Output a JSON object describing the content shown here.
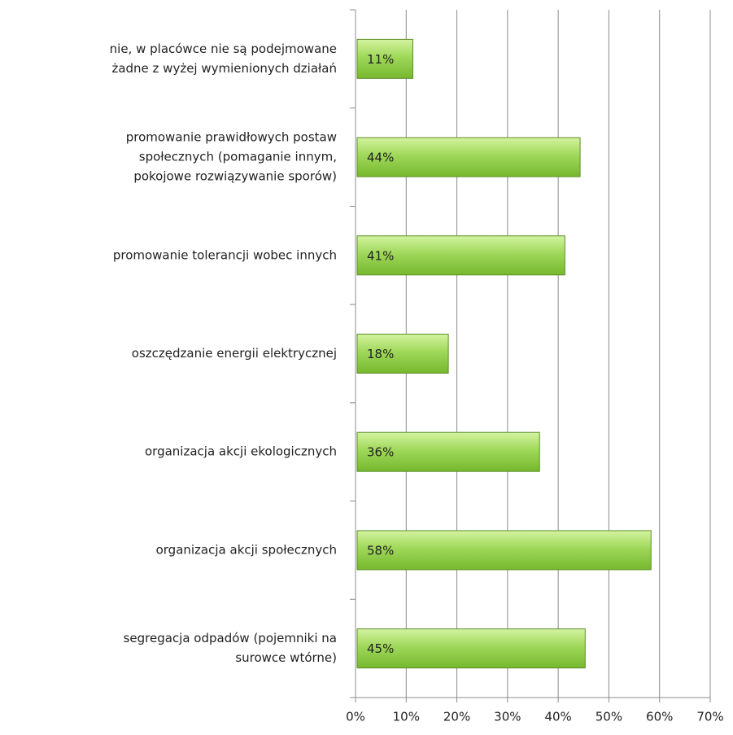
{
  "chart_data": {
    "type": "hbar",
    "categories": [
      [
        "nie, w placówce nie są podejmowane",
        "żadne z wyżej wymienionych działań"
      ],
      [
        "promowanie prawidłowych postaw",
        "społecznych (pomaganie innym,",
        "pokojowe rozwiązywanie sporów)"
      ],
      [
        "promowanie tolerancji wobec innych"
      ],
      [
        "oszczędzanie energii elektrycznej"
      ],
      [
        "organizacja akcji ekologicznych"
      ],
      [
        "organizacja akcji społecznych"
      ],
      [
        "segregacja odpadów (pojemniki na",
        "surowce wtórne)"
      ]
    ],
    "values": [
      11,
      44,
      41,
      18,
      36,
      58,
      45
    ],
    "value_labels": [
      "11%",
      "44%",
      "41%",
      "18%",
      "36%",
      "58%",
      "45%"
    ],
    "color": "#92d050",
    "xlim": [
      0,
      70
    ],
    "xticks": [
      {
        "value": 0,
        "label": "0%"
      },
      {
        "value": 10,
        "label": "10%"
      },
      {
        "value": 20,
        "label": "20%"
      },
      {
        "value": 30,
        "label": "30%"
      },
      {
        "value": 40,
        "label": "40%"
      },
      {
        "value": 50,
        "label": "50%"
      },
      {
        "value": 60,
        "label": "60%"
      },
      {
        "value": 70,
        "label": "70%"
      }
    ],
    "grid": true
  }
}
